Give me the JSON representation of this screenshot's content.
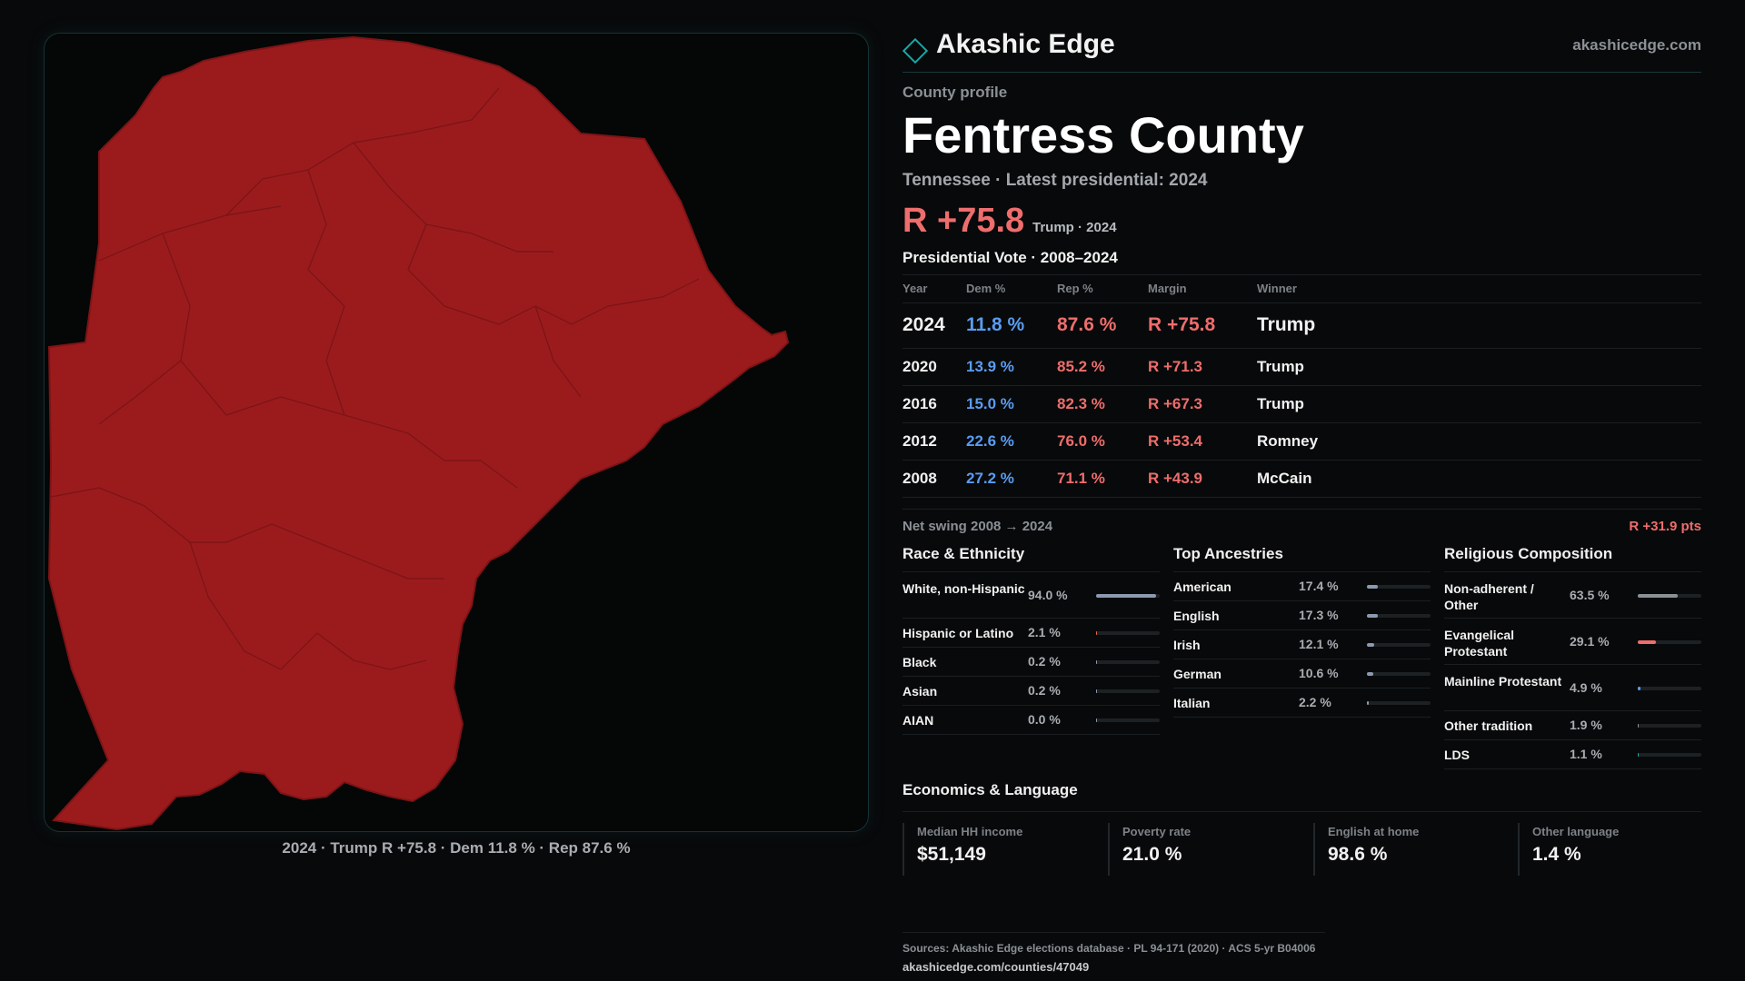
{
  "map": {
    "caption": "2024 · Trump R +75.8 · Dem 11.8 % · Rep 87.6 %",
    "fill_color": "#9b1b1d",
    "line_color": "#7e1416"
  },
  "brand": {
    "name": "Akashic Edge",
    "url": "akashicedge.com",
    "icon": "diamond-logo-icon",
    "accent": "#1aa7a6"
  },
  "profile": {
    "eyebrow": "County profile",
    "county": "Fentress County",
    "subtitle": "Tennessee · Latest presidential: 2024",
    "margin": "R +75.8",
    "margin_sub": "Trump · 2024"
  },
  "votes": {
    "title": "Presidential Vote · 2008–2024",
    "headers": [
      "Year",
      "Dem %",
      "Rep %",
      "Margin",
      "Winner"
    ],
    "rows": [
      {
        "year": "2024",
        "dem": "11.8 %",
        "rep": "87.6 %",
        "margin": "R +75.8",
        "winner": "Trump"
      },
      {
        "year": "2020",
        "dem": "13.9 %",
        "rep": "85.2 %",
        "margin": "R +71.3",
        "winner": "Trump"
      },
      {
        "year": "2016",
        "dem": "15.0 %",
        "rep": "82.3 %",
        "margin": "R +67.3",
        "winner": "Trump"
      },
      {
        "year": "2012",
        "dem": "22.6 %",
        "rep": "76.0 %",
        "margin": "R +53.4",
        "winner": "Romney"
      },
      {
        "year": "2008",
        "dem": "27.2 %",
        "rep": "71.1 %",
        "margin": "R +43.9",
        "winner": "McCain"
      }
    ],
    "swing_label": "Net swing 2008 → 2024",
    "swing_value": "R +31.9 pts"
  },
  "race": {
    "title": "Race & Ethnicity",
    "items": [
      {
        "label": "White, non-Hispanic",
        "value": "94.0 %",
        "pct": 94.0,
        "color": "#8b9aae"
      },
      {
        "label": "Hispanic or Latino",
        "value": "2.1 %",
        "pct": 2.1,
        "color": "#e06a4a"
      },
      {
        "label": "Black",
        "value": "0.2 %",
        "pct": 0.2,
        "color": "#8b9aae"
      },
      {
        "label": "Asian",
        "value": "0.2 %",
        "pct": 0.2,
        "color": "#8b9aae"
      },
      {
        "label": "AIAN",
        "value": "0.0 %",
        "pct": 0.0,
        "color": "#8b9aae"
      }
    ]
  },
  "ancestry": {
    "title": "Top Ancestries",
    "items": [
      {
        "label": "American",
        "value": "17.4 %",
        "pct": 17.4,
        "color": "#8b9aae"
      },
      {
        "label": "English",
        "value": "17.3 %",
        "pct": 17.3,
        "color": "#8b9aae"
      },
      {
        "label": "Irish",
        "value": "12.1 %",
        "pct": 12.1,
        "color": "#8b9aae"
      },
      {
        "label": "German",
        "value": "10.6 %",
        "pct": 10.6,
        "color": "#8b9aae"
      },
      {
        "label": "Italian",
        "value": "2.2 %",
        "pct": 2.2,
        "color": "#8b9aae"
      }
    ]
  },
  "religion": {
    "title": "Religious Composition",
    "items": [
      {
        "label": "Non-adherent / Other",
        "value": "63.5 %",
        "pct": 63.5,
        "color": "#8b9096"
      },
      {
        "label": "Evangelical Protestant",
        "value": "29.1 %",
        "pct": 29.1,
        "color": "#ee6d6d"
      },
      {
        "label": "Mainline Protestant",
        "value": "4.9 %",
        "pct": 4.9,
        "color": "#5a9cf0"
      },
      {
        "label": "Other tradition",
        "value": "1.9 %",
        "pct": 1.9,
        "color": "#8b9096"
      },
      {
        "label": "LDS",
        "value": "1.1 %",
        "pct": 1.1,
        "color": "#1aa7a6"
      }
    ]
  },
  "econ": {
    "title": "Economics & Language",
    "items": [
      {
        "label": "Median HH income",
        "value": "$51,149"
      },
      {
        "label": "Poverty rate",
        "value": "21.0 %"
      },
      {
        "label": "English at home",
        "value": "98.6 %"
      },
      {
        "label": "Other language",
        "value": "1.4 %"
      }
    ]
  },
  "footer": {
    "sources": "Sources: Akashic Edge elections database · PL 94-171 (2020) · ACS 5-yr B04006",
    "link": "akashicedge.com/counties/47049"
  }
}
